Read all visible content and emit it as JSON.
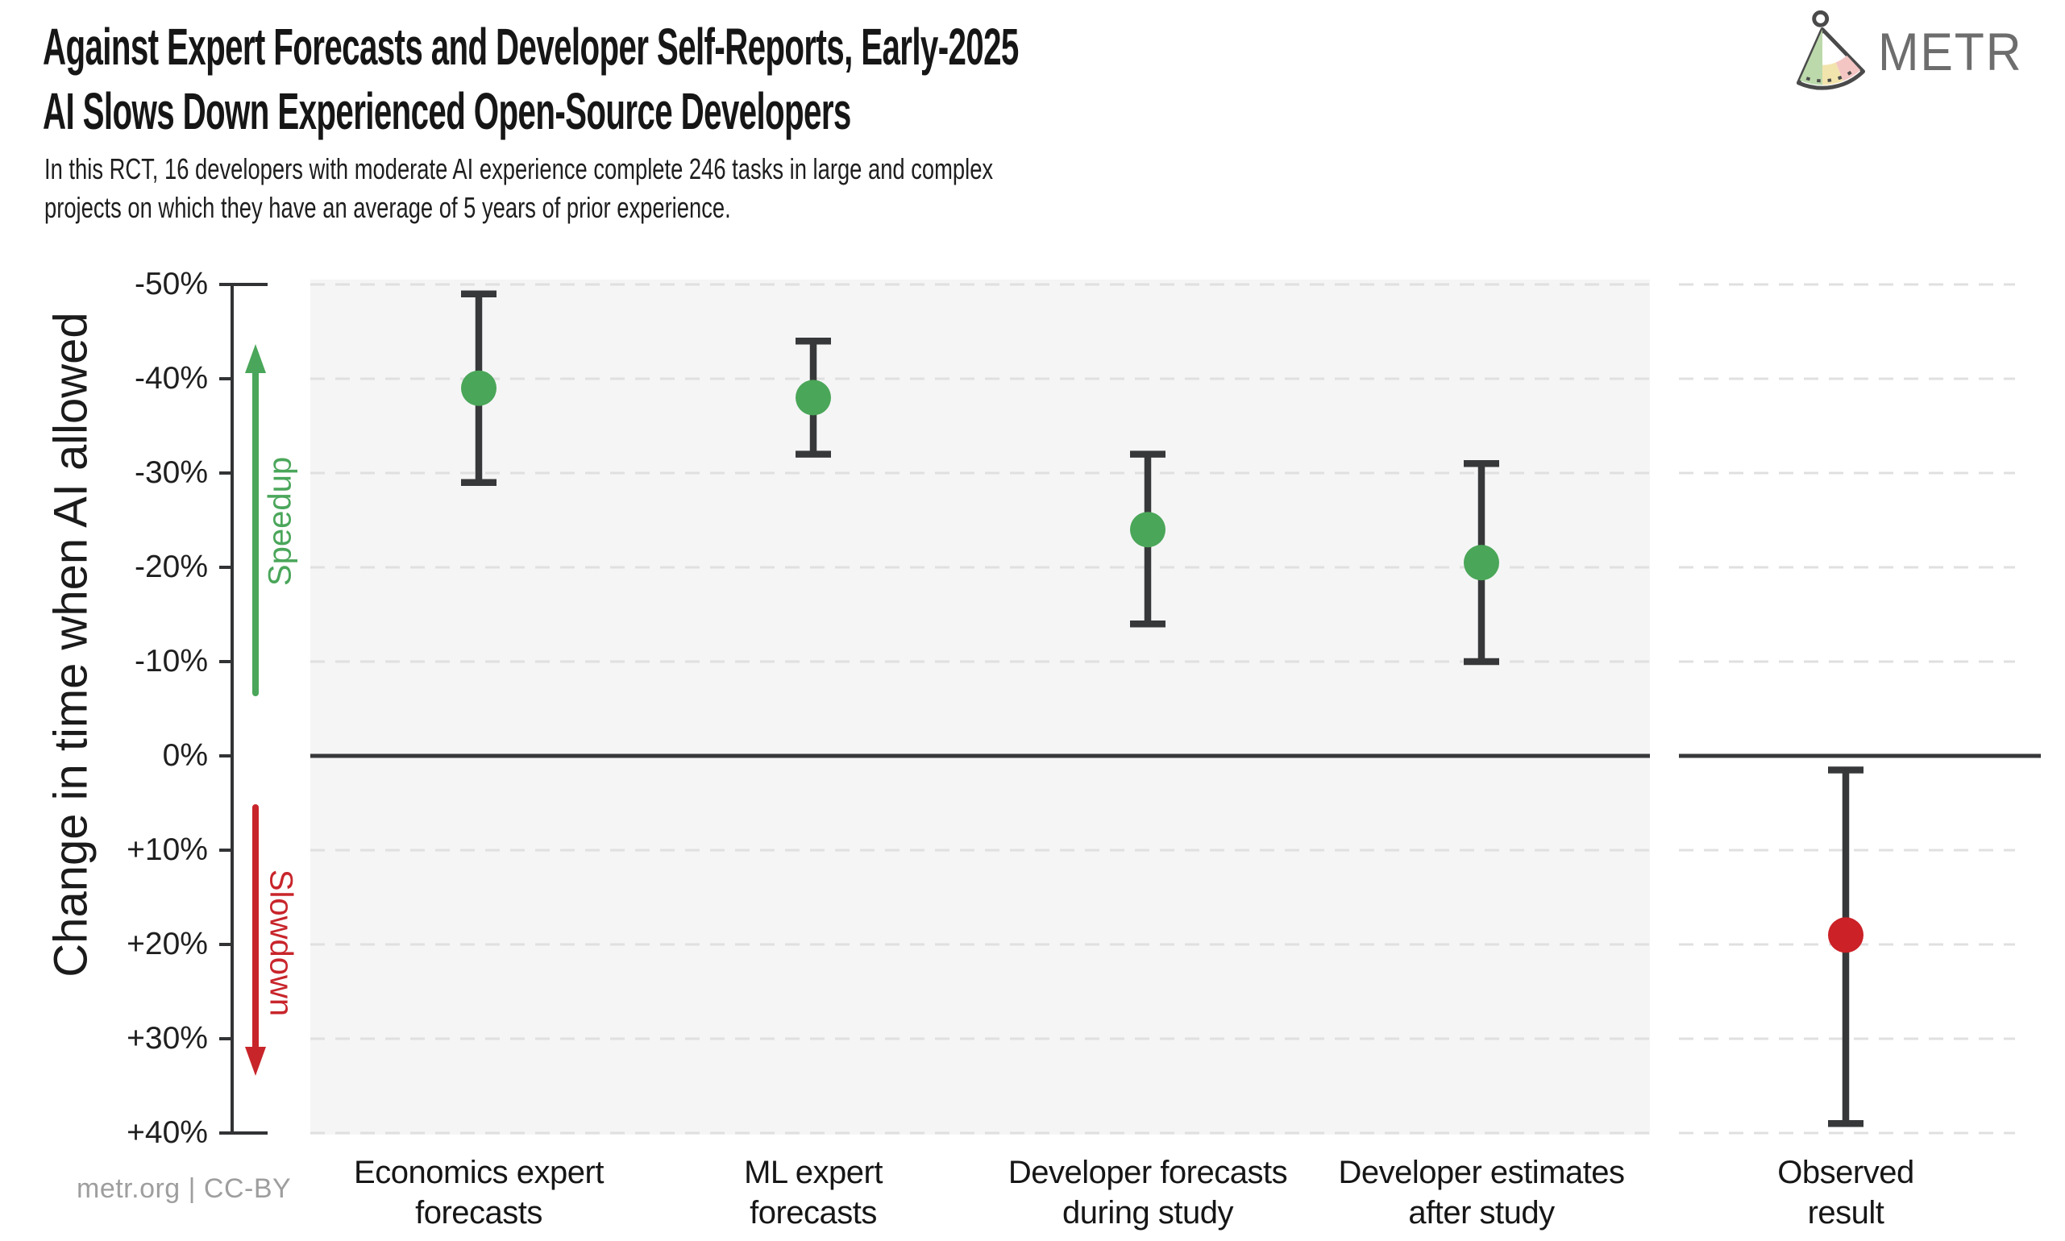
{
  "header": {
    "title_line1": "Against Expert Forecasts and Developer Self-Reports, Early-2025",
    "title_line2": "AI Slows Down Experienced Open-Source Developers",
    "subtitle_line1": "In this RCT, 16 developers with moderate AI experience complete 246 tasks in large and complex",
    "subtitle_line2": "projects on which they have an average of 5 years of prior experience.",
    "logo_text": "METR"
  },
  "footer": {
    "text": "metr.org  |  CC-BY"
  },
  "colors": {
    "green": "#4aa658",
    "red": "#cb2127",
    "axis": "#313335",
    "errorbar": "#37383a",
    "grid": "#e0e0e0",
    "panel_bg": "#f5f5f6",
    "right_panel_bg": "#ffffff",
    "speedup_green": "#4aa65a",
    "slowdown_red": "#c8252b"
  },
  "chart_data": {
    "type": "scatter",
    "title": "Against Expert Forecasts and Developer Self-Reports, Early-2025 AI Slows Down Experienced Open-Source Developers",
    "ylabel": "Change in time when AI allowed",
    "ylim": [
      -50,
      40
    ],
    "y_axis_direction": "negative (speedup) at top, positive (slowdown) at bottom",
    "grid": "horizontal dashed gridlines every 10%, solid dark line at 0%",
    "legend_position": "none",
    "y_ticks": [
      {
        "value": -50,
        "label": "-50%"
      },
      {
        "value": -40,
        "label": "-40%"
      },
      {
        "value": -30,
        "label": "-30%"
      },
      {
        "value": -20,
        "label": "-20%"
      },
      {
        "value": -10,
        "label": "-10%"
      },
      {
        "value": 0,
        "label": "0%"
      },
      {
        "value": 10,
        "label": "+10%"
      },
      {
        "value": 20,
        "label": "+20%"
      },
      {
        "value": 30,
        "label": "+30%"
      },
      {
        "value": 40,
        "label": "+40%"
      }
    ],
    "annotations": {
      "speedup_label": "Speedup",
      "slowdown_label": "Slowdown"
    },
    "series": [
      {
        "category": "Economics expert forecasts",
        "label_line1": "Economics expert",
        "label_line2": "forecasts",
        "value_pct": -39,
        "ci_low_pct": -49,
        "ci_high_pct": -29,
        "color": "#4aa658",
        "panel": "main"
      },
      {
        "category": "ML expert forecasts",
        "label_line1": "ML expert",
        "label_line2": "forecasts",
        "value_pct": -38,
        "ci_low_pct": -44,
        "ci_high_pct": -32,
        "color": "#4aa658",
        "panel": "main"
      },
      {
        "category": "Developer forecasts during study",
        "label_line1": "Developer forecasts",
        "label_line2": "during study",
        "value_pct": -24,
        "ci_low_pct": -32,
        "ci_high_pct": -14,
        "color": "#4aa658",
        "panel": "main"
      },
      {
        "category": "Developer estimates after study",
        "label_line1": "Developer estimates",
        "label_line2": "after study",
        "value_pct": -20.5,
        "ci_low_pct": -31,
        "ci_high_pct": -10,
        "color": "#4aa658",
        "panel": "main"
      },
      {
        "category": "Observed result",
        "label_line1": "Observed",
        "label_line2": "result",
        "value_pct": 19,
        "ci_low_pct": 1.5,
        "ci_high_pct": 39,
        "color": "#cb2127",
        "panel": "right"
      }
    ]
  }
}
